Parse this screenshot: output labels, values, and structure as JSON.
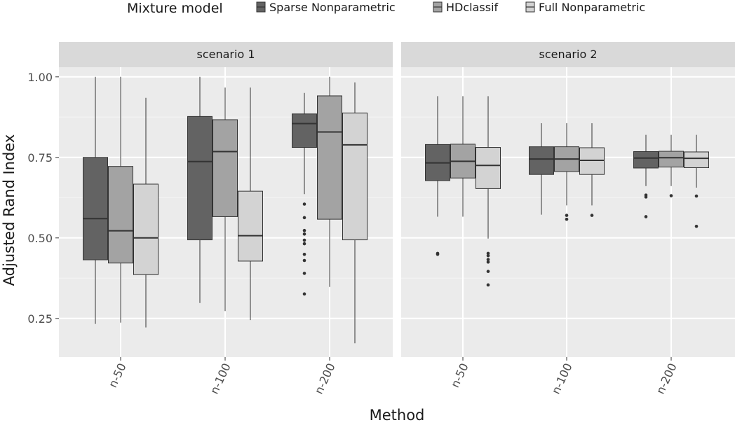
{
  "chart_data": {
    "type": "box",
    "legend": {
      "title": "Mixture model",
      "placement": "top",
      "entries": [
        {
          "label": "Sparse Nonparametric",
          "color": "#636363"
        },
        {
          "label": "HDclassif",
          "color": "#a3a3a3"
        },
        {
          "label": "Full Nonparametric",
          "color": "#d3d3d3"
        }
      ]
    },
    "xlabel": "Method",
    "ylabel": "Adjusted Rand Index",
    "ylim": [
      0.13,
      1.03
    ],
    "yticks": [
      0.25,
      0.5,
      0.75,
      1.0
    ],
    "ytick_labels": [
      "0.25",
      "0.50",
      "0.75",
      "1.00"
    ],
    "categories": [
      "n-50",
      "n-100",
      "n-200"
    ],
    "panels": [
      {
        "label": "scenario 1",
        "groups": [
          {
            "category": "n-50",
            "boxes": [
              {
                "series": "Sparse Nonparametric",
                "q1": 0.432,
                "median": 0.56,
                "q3": 0.75,
                "whisker_low": 0.233,
                "whisker_high": 1.0,
                "outliers": []
              },
              {
                "series": "HDclassif",
                "q1": 0.422,
                "median": 0.522,
                "q3": 0.722,
                "whisker_low": 0.237,
                "whisker_high": 1.0,
                "outliers": []
              },
              {
                "series": "Full Nonparametric",
                "q1": 0.386,
                "median": 0.5,
                "q3": 0.667,
                "whisker_low": 0.222,
                "whisker_high": 0.935,
                "outliers": []
              }
            ]
          },
          {
            "category": "n-100",
            "boxes": [
              {
                "series": "Sparse Nonparametric",
                "q1": 0.494,
                "median": 0.737,
                "q3": 0.877,
                "whisker_low": 0.298,
                "whisker_high": 1.0,
                "outliers": []
              },
              {
                "series": "HDclassif",
                "q1": 0.566,
                "median": 0.768,
                "q3": 0.867,
                "whisker_low": 0.273,
                "whisker_high": 0.967,
                "outliers": []
              },
              {
                "series": "Full Nonparametric",
                "q1": 0.428,
                "median": 0.507,
                "q3": 0.645,
                "whisker_low": 0.245,
                "whisker_high": 0.967,
                "outliers": []
              }
            ]
          },
          {
            "category": "n-200",
            "boxes": [
              {
                "series": "Sparse Nonparametric",
                "q1": 0.781,
                "median": 0.855,
                "q3": 0.885,
                "whisker_low": 0.636,
                "whisker_high": 0.95,
                "outliers": [
                  0.605,
                  0.563,
                  0.523,
                  0.512,
                  0.493,
                  0.482,
                  0.449,
                  0.43,
                  0.39,
                  0.326
                ]
              },
              {
                "series": "HDclassif",
                "q1": 0.558,
                "median": 0.829,
                "q3": 0.941,
                "whisker_low": 0.348,
                "whisker_high": 1.0,
                "outliers": []
              },
              {
                "series": "Full Nonparametric",
                "q1": 0.494,
                "median": 0.789,
                "q3": 0.888,
                "whisker_low": 0.173,
                "whisker_high": 0.983,
                "outliers": []
              }
            ]
          }
        ]
      },
      {
        "label": "scenario 2",
        "groups": [
          {
            "category": "n-50",
            "boxes": [
              {
                "series": "Sparse Nonparametric",
                "q1": 0.678,
                "median": 0.733,
                "q3": 0.79,
                "whisker_low": 0.566,
                "whisker_high": 0.94,
                "outliers": [
                  0.452,
                  0.449
                ]
              },
              {
                "series": "HDclassif",
                "q1": 0.686,
                "median": 0.738,
                "q3": 0.791,
                "whisker_low": 0.566,
                "whisker_high": 0.94,
                "outliers": []
              },
              {
                "series": "Full Nonparametric",
                "q1": 0.653,
                "median": 0.725,
                "q3": 0.781,
                "whisker_low": 0.498,
                "whisker_high": 0.94,
                "outliers": [
                  0.452,
                  0.445,
                  0.433,
                  0.425,
                  0.396,
                  0.354
                ]
              }
            ]
          },
          {
            "category": "n-100",
            "boxes": [
              {
                "series": "Sparse Nonparametric",
                "q1": 0.697,
                "median": 0.745,
                "q3": 0.783,
                "whisker_low": 0.572,
                "whisker_high": 0.856,
                "outliers": []
              },
              {
                "series": "HDclassif",
                "q1": 0.706,
                "median": 0.745,
                "q3": 0.783,
                "whisker_low": 0.601,
                "whisker_high": 0.856,
                "outliers": [
                  0.57,
                  0.558
                ]
              },
              {
                "series": "Full Nonparametric",
                "q1": 0.697,
                "median": 0.741,
                "q3": 0.78,
                "whisker_low": 0.601,
                "whisker_high": 0.856,
                "outliers": [
                  0.57
                ]
              }
            ]
          },
          {
            "category": "n-200",
            "boxes": [
              {
                "series": "Sparse Nonparametric",
                "q1": 0.717,
                "median": 0.748,
                "q3": 0.768,
                "whisker_low": 0.661,
                "whisker_high": 0.82,
                "outliers": [
                  0.633,
                  0.627,
                  0.566
                ]
              },
              {
                "series": "HDclassif",
                "q1": 0.72,
                "median": 0.749,
                "q3": 0.769,
                "whisker_low": 0.661,
                "whisker_high": 0.82,
                "outliers": [
                  0.631
                ]
              },
              {
                "series": "Full Nonparametric",
                "q1": 0.718,
                "median": 0.747,
                "q3": 0.767,
                "whisker_low": 0.656,
                "whisker_high": 0.82,
                "outliers": [
                  0.63,
                  0.536
                ]
              }
            ]
          }
        ]
      }
    ]
  }
}
